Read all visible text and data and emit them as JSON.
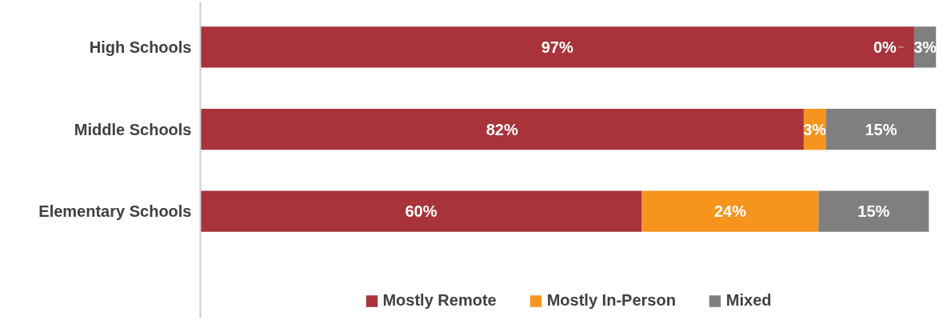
{
  "chart_data": {
    "type": "bar",
    "orientation": "horizontal",
    "stacked": true,
    "categories": [
      "High Schools",
      "Middle Schools",
      "Elementary Schools"
    ],
    "series": [
      {
        "name": "Mostly Remote",
        "color": "#a8333a",
        "values": [
          97,
          82,
          60
        ],
        "value_labels": [
          "97%",
          "82%",
          "60%"
        ]
      },
      {
        "name": "Mostly In-Person",
        "color": "#f7941d",
        "values": [
          0,
          3,
          24
        ],
        "value_labels": [
          "0%",
          "3%",
          "24%"
        ]
      },
      {
        "name": "Mixed",
        "color": "#7f7f7f",
        "values": [
          3,
          15,
          15
        ],
        "value_labels": [
          "3%",
          "15%",
          "15%"
        ]
      }
    ],
    "legend": "bottom",
    "tick_labels": "y"
  }
}
